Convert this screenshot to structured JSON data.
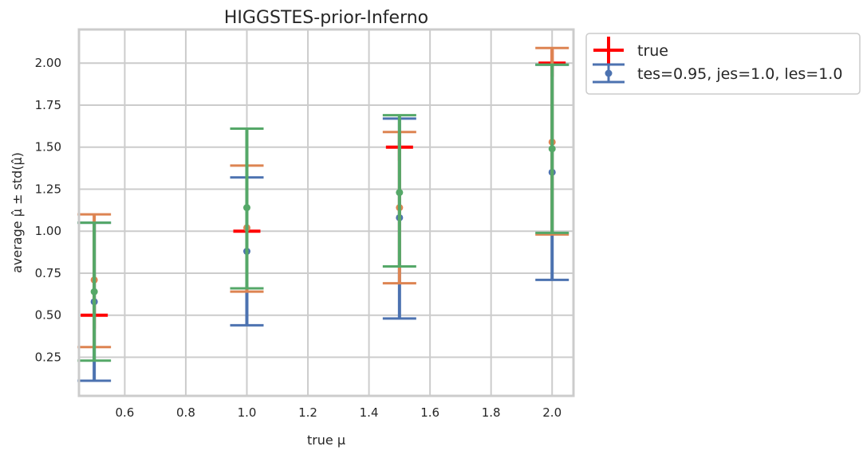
{
  "chart_data": {
    "type": "scatter",
    "title": "HIGGSTES-prior-Inferno",
    "xlabel": "true μ",
    "ylabel": "average μ̂ ± std(μ̂)",
    "xlim": [
      0.45,
      2.07
    ],
    "ylim": [
      0.02,
      2.2
    ],
    "xticks": [
      0.6,
      0.8,
      1.0,
      1.2,
      1.4,
      1.6,
      1.8,
      2.0
    ],
    "xtick_labels": [
      "0.6",
      "0.8",
      "1.0",
      "1.2",
      "1.4",
      "1.6",
      "1.8",
      "2.0"
    ],
    "yticks": [
      0.25,
      0.5,
      0.75,
      1.0,
      1.25,
      1.5,
      1.75,
      2.0
    ],
    "ytick_labels": [
      "0.25",
      "0.50",
      "0.75",
      "1.00",
      "1.25",
      "1.50",
      "1.75",
      "2.00"
    ],
    "grid": true,
    "legend_position": "outside-top-right",
    "colors": {
      "true": "#ff0000",
      "blue": "#4c72b0",
      "orange": "#dd8452",
      "green": "#55a868",
      "grid": "#cccccc"
    },
    "true_points": {
      "name": "true",
      "x": [
        0.5,
        1.0,
        1.5,
        2.0
      ],
      "y": [
        0.5,
        1.0,
        1.5,
        2.0
      ]
    },
    "series": [
      {
        "name": "tes=0.95, jes=1.0, les=1.0",
        "color": "#4c72b0",
        "x": [
          0.5,
          1.0,
          1.5,
          2.0
        ],
        "y": [
          0.58,
          0.88,
          1.08,
          1.35
        ],
        "lower": [
          0.11,
          0.44,
          0.48,
          0.71
        ],
        "upper": [
          1.05,
          1.32,
          1.67,
          1.99
        ]
      },
      {
        "name": "",
        "color": "#dd8452",
        "x": [
          0.5,
          1.0,
          1.5,
          2.0
        ],
        "y": [
          0.71,
          1.02,
          1.14,
          1.53
        ],
        "lower": [
          0.31,
          0.64,
          0.69,
          0.98
        ],
        "upper": [
          1.1,
          1.39,
          1.59,
          2.09
        ]
      },
      {
        "name": "",
        "color": "#55a868",
        "x": [
          0.5,
          1.0,
          1.5,
          2.0
        ],
        "y": [
          0.64,
          1.14,
          1.23,
          1.49
        ],
        "lower": [
          0.23,
          0.66,
          0.79,
          0.99
        ],
        "upper": [
          1.05,
          1.61,
          1.69,
          1.99
        ]
      }
    ]
  }
}
